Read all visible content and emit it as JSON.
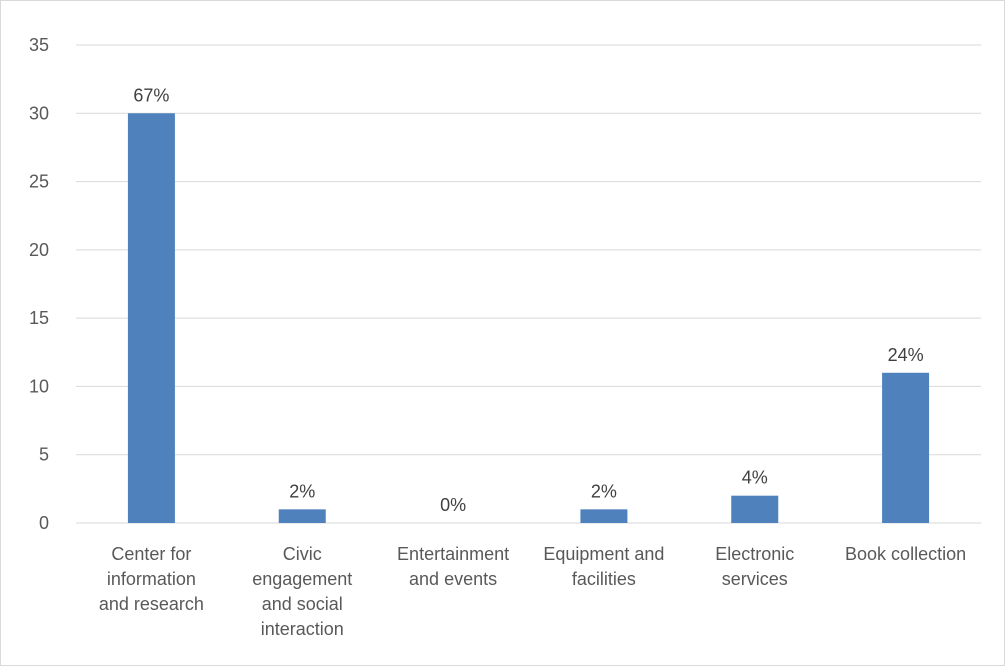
{
  "chart_data": {
    "type": "bar",
    "title": "",
    "xlabel": "",
    "ylabel": "",
    "categories": [
      [
        "Center for",
        "information",
        "and research"
      ],
      [
        "Civic",
        "engagement",
        "and social",
        "interaction"
      ],
      [
        "Entertainment",
        "and events"
      ],
      [
        "Equipment and",
        "facilities"
      ],
      [
        "Electronic",
        "services"
      ],
      [
        "Book collection"
      ]
    ],
    "values": [
      30,
      1,
      0,
      1,
      2,
      11
    ],
    "data_labels": [
      "67%",
      "2%",
      "0%",
      "2%",
      "4%",
      "24%"
    ],
    "ylim": [
      0,
      35
    ],
    "yticks": [
      0,
      5,
      10,
      15,
      20,
      25,
      30,
      35
    ],
    "grid": true,
    "legend": "none",
    "bar_color": "#4f81bd",
    "grid_color": "#d9d9d9"
  }
}
